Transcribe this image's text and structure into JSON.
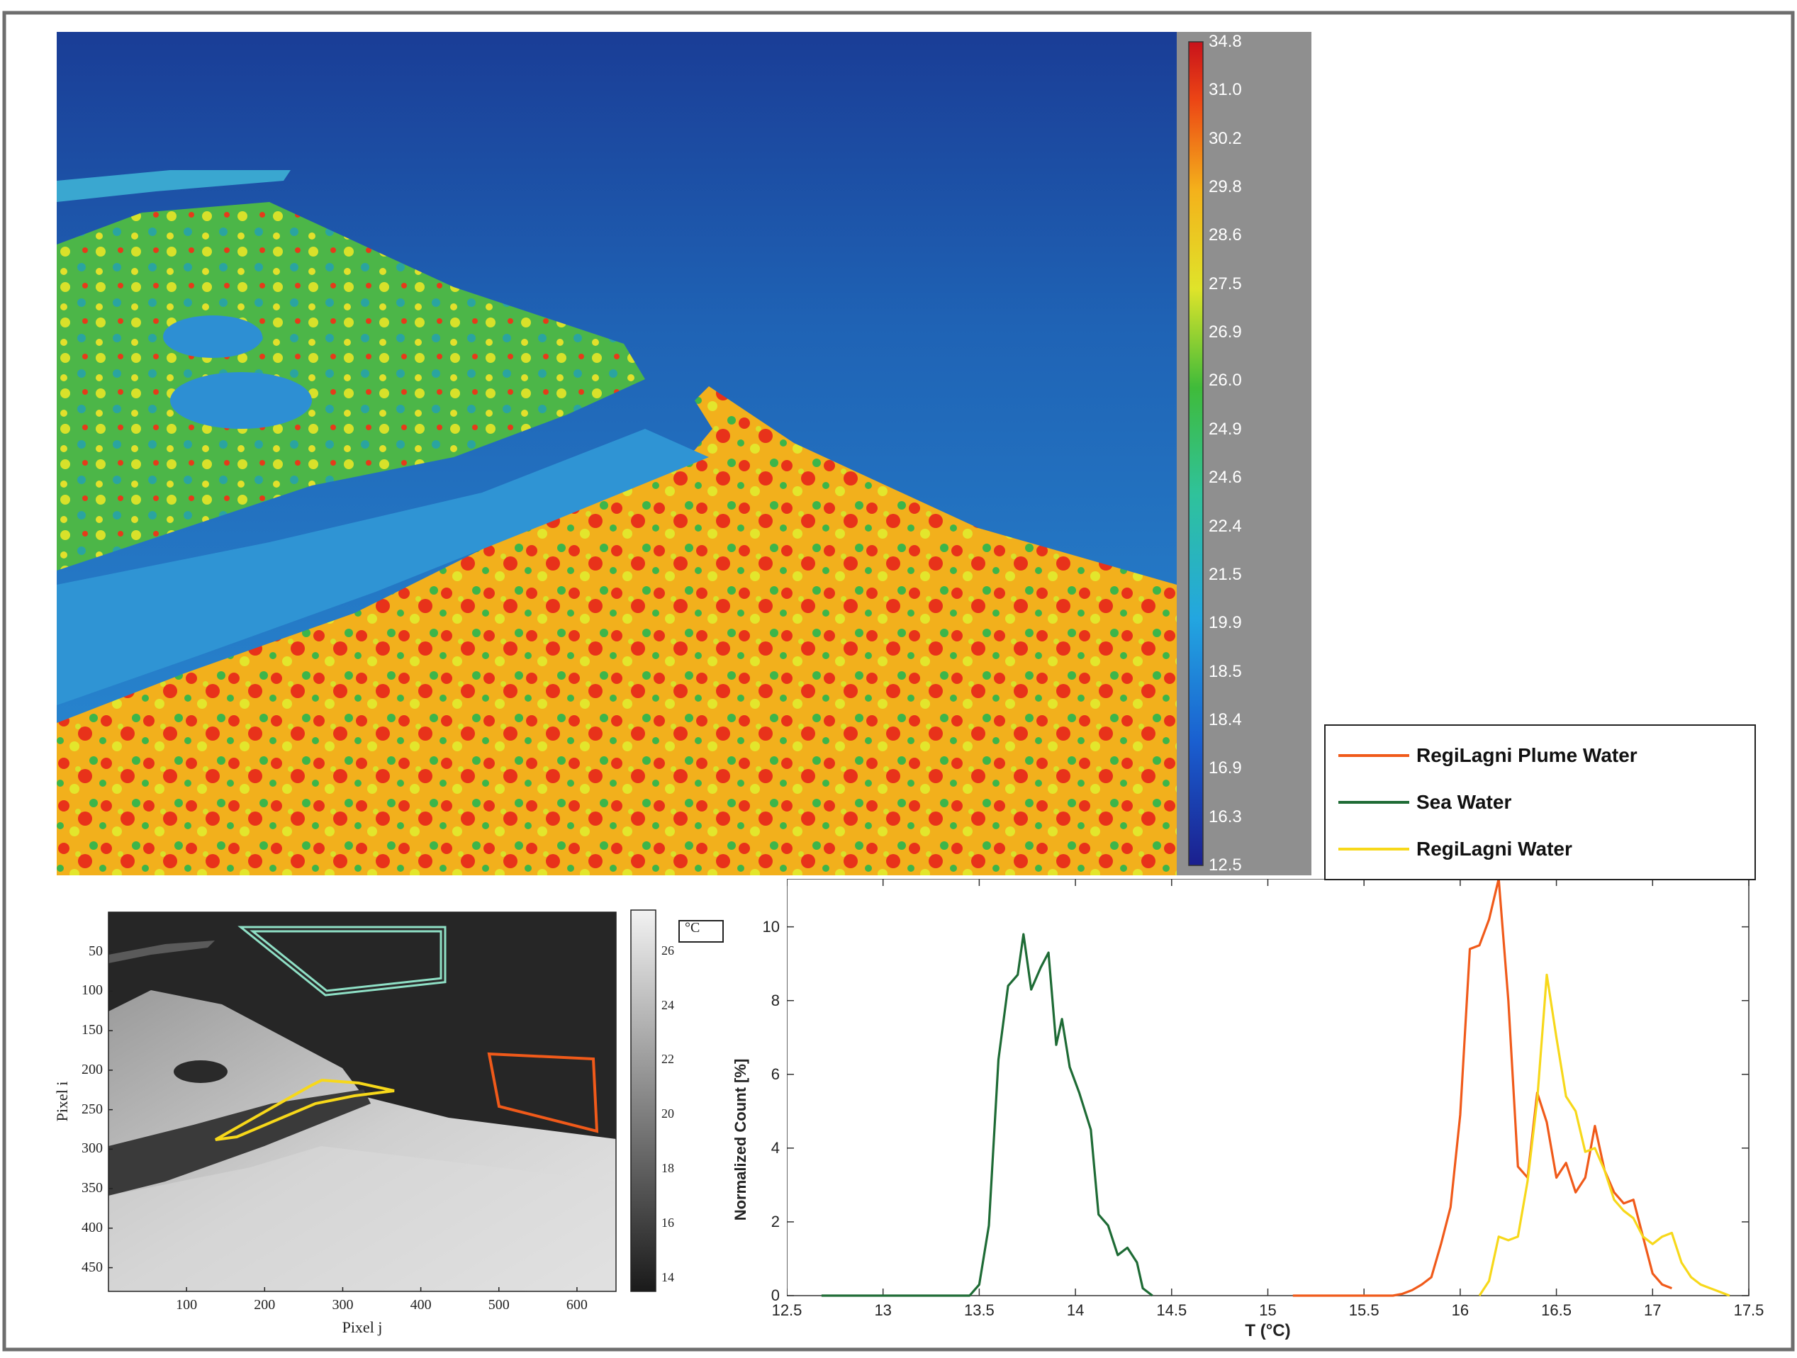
{
  "thermal_colorbar": {
    "ticks": [
      "34.8",
      "31.0",
      "30.2",
      "29.8",
      "28.6",
      "27.5",
      "26.9",
      "26.0",
      "24.9",
      "24.6",
      "22.4",
      "21.5",
      "19.9",
      "18.5",
      "18.4",
      "16.9",
      "16.3",
      "12.5"
    ]
  },
  "grayscale_map": {
    "xlabel": "Pixel j",
    "ylabel": "Pixel i",
    "x_ticks": [
      "100",
      "200",
      "300",
      "400",
      "500",
      "600"
    ],
    "y_ticks": [
      "50",
      "100",
      "150",
      "200",
      "250",
      "300",
      "350",
      "400",
      "450"
    ],
    "colorbar_label": "°C",
    "colorbar_ticks": [
      "26",
      "24",
      "22",
      "20",
      "18",
      "16",
      "14"
    ]
  },
  "legend": {
    "items": [
      {
        "label": "RegiLagni Plume Water",
        "color": "#f05a1a"
      },
      {
        "label": "Sea Water",
        "color": "#1e6b35"
      },
      {
        "label": "RegiLagni Water",
        "color": "#f7d81a"
      }
    ]
  },
  "chart_data": {
    "type": "line",
    "title": "",
    "xlabel": "T (°C)",
    "ylabel": "Normalized Count [%]",
    "xlim": [
      12.5,
      17.5
    ],
    "ylim": [
      0,
      11.3
    ],
    "x_ticks": [
      "12.5",
      "13",
      "13.5",
      "14",
      "14.5",
      "15",
      "15.5",
      "16",
      "16.5",
      "17",
      "17.5"
    ],
    "y_ticks": [
      "0",
      "2",
      "4",
      "6",
      "8",
      "10"
    ],
    "series": [
      {
        "name": "Sea Water",
        "color": "#1e6b35",
        "x": [
          12.68,
          13.45,
          13.5,
          13.55,
          13.6,
          13.65,
          13.7,
          13.73,
          13.77,
          13.82,
          13.86,
          13.9,
          13.93,
          13.97,
          14.02,
          14.08,
          14.12,
          14.17,
          14.22,
          14.27,
          14.32,
          14.35,
          14.4
        ],
        "y": [
          0,
          0,
          0.3,
          1.9,
          6.4,
          8.4,
          8.7,
          9.8,
          8.3,
          8.9,
          9.3,
          6.8,
          7.5,
          6.2,
          5.5,
          4.5,
          2.2,
          1.9,
          1.1,
          1.3,
          0.9,
          0.2,
          0
        ]
      },
      {
        "name": "RegiLagni Plume Water",
        "color": "#f05a1a",
        "x": [
          15.13,
          15.65,
          15.7,
          15.75,
          15.8,
          15.85,
          15.9,
          15.95,
          16.0,
          16.05,
          16.1,
          16.15,
          16.2,
          16.25,
          16.3,
          16.35,
          16.4,
          16.45,
          16.5,
          16.55,
          16.6,
          16.65,
          16.7,
          16.75,
          16.8,
          16.85,
          16.9,
          16.95,
          17.0,
          17.05,
          17.1
        ],
        "y": [
          0,
          0,
          0.05,
          0.15,
          0.3,
          0.5,
          1.4,
          2.4,
          4.9,
          9.4,
          9.5,
          10.2,
          11.3,
          8.0,
          3.5,
          3.2,
          5.5,
          4.7,
          3.2,
          3.6,
          2.8,
          3.2,
          4.6,
          3.4,
          2.8,
          2.5,
          2.6,
          1.6,
          0.6,
          0.3,
          0.2
        ]
      },
      {
        "name": "RegiLagni Water",
        "color": "#f7d81a",
        "x": [
          16.1,
          16.15,
          16.2,
          16.25,
          16.3,
          16.35,
          16.4,
          16.45,
          16.5,
          16.55,
          16.6,
          16.65,
          16.7,
          16.75,
          16.8,
          16.85,
          16.9,
          16.95,
          17.0,
          17.05,
          17.1,
          17.15,
          17.2,
          17.25,
          17.3,
          17.35,
          17.4
        ],
        "y": [
          0,
          0.4,
          1.6,
          1.5,
          1.6,
          3.1,
          5.3,
          8.7,
          7.0,
          5.4,
          5.0,
          3.9,
          4.0,
          3.4,
          2.6,
          2.3,
          2.1,
          1.6,
          1.4,
          1.6,
          1.7,
          0.9,
          0.5,
          0.3,
          0.2,
          0.1,
          0
        ]
      }
    ]
  }
}
